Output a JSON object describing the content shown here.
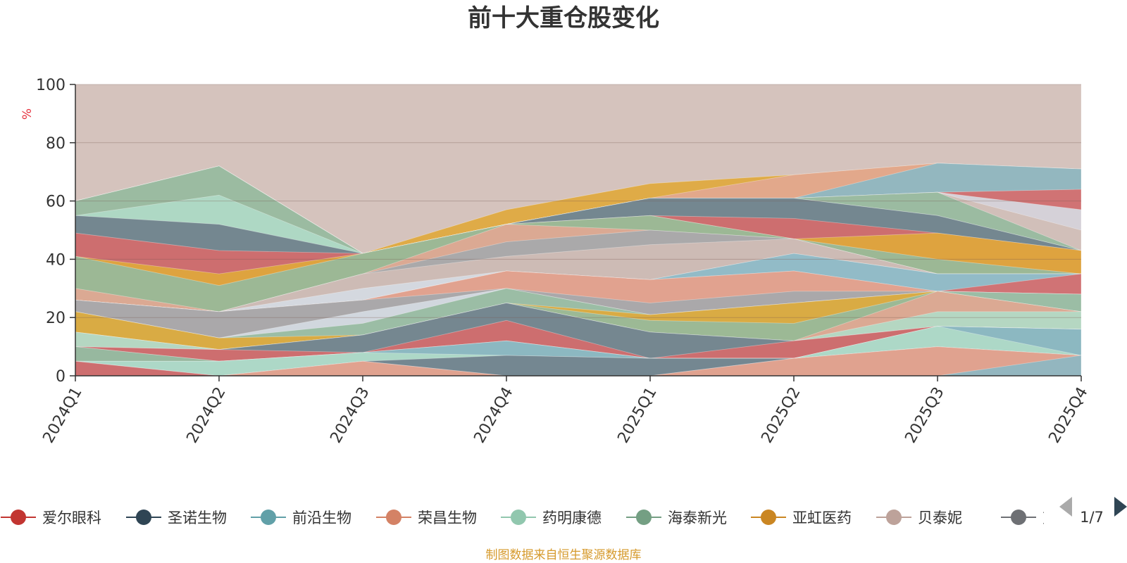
{
  "chart_data": {
    "type": "area",
    "title": "前十大重仓股变化",
    "ylabel": "%",
    "ylim": [
      0,
      100
    ],
    "yticks": [
      0,
      20,
      40,
      60,
      80,
      100
    ],
    "categories": [
      "2024Q1",
      "2024Q2",
      "2024Q3",
      "2024Q4",
      "2025Q1",
      "2025Q2",
      "2025Q3",
      "2025Q4"
    ],
    "layers": [
      {
        "top": [
          100,
          100,
          100,
          100,
          100,
          100,
          100,
          100
        ],
        "color": "#d0bcb6"
      },
      {
        "top": [
          60,
          72,
          42,
          57,
          66,
          69,
          73,
          71
        ],
        "color": "#e0a83a"
      },
      {
        "top": [
          60,
          72,
          42,
          52,
          61,
          69,
          73,
          71
        ],
        "color": "#e2a792"
      },
      {
        "top": [
          60,
          72,
          42,
          52,
          61,
          61,
          73,
          71
        ],
        "color": "#8bb8c4"
      },
      {
        "top": [
          60,
          72,
          42,
          52,
          61,
          61,
          63,
          64
        ],
        "color": "#d76b6b"
      },
      {
        "top": [
          60,
          72,
          42,
          52,
          61,
          61,
          63,
          57
        ],
        "color": "#d5dbe3"
      },
      {
        "top": [
          60,
          72,
          42,
          52,
          61,
          61,
          63,
          50
        ],
        "color": "#d0bcb6"
      },
      {
        "top": [
          60,
          72,
          42,
          52,
          61,
          61,
          63,
          43
        ],
        "color": "#95ba9e"
      },
      {
        "top": [
          55,
          62,
          42,
          52,
          61,
          61,
          55,
          43
        ],
        "color": "#b0dcc8"
      },
      {
        "top": [
          55,
          52,
          42,
          52,
          61,
          61,
          55,
          43
        ],
        "color": "#6e7e8b"
      },
      {
        "top": [
          49,
          43,
          42,
          52,
          55,
          54,
          49,
          43
        ],
        "color": "#d76b6b"
      },
      {
        "top": [
          41,
          35,
          42,
          52,
          55,
          47,
          49,
          43
        ],
        "color": "#e0a83a"
      },
      {
        "top": [
          41,
          31,
          42,
          52,
          55,
          47,
          40,
          35
        ],
        "color": "#95ba9e"
      },
      {
        "top": [
          30,
          22,
          35,
          52,
          50,
          47,
          35,
          35
        ],
        "color": "#e2a792"
      },
      {
        "top": [
          26,
          22,
          35,
          46,
          50,
          47,
          35,
          35
        ],
        "color": "#a4a8ad"
      },
      {
        "top": [
          26,
          22,
          35,
          41,
          45,
          47,
          35,
          35
        ],
        "color": "#d0bcb6"
      },
      {
        "top": [
          26,
          22,
          30,
          36,
          33,
          42,
          35,
          35
        ],
        "color": "#d5dbe3"
      },
      {
        "top": [
          26,
          22,
          26,
          36,
          33,
          42,
          35,
          35
        ],
        "color": "#8bb8c4"
      },
      {
        "top": [
          26,
          22,
          26,
          36,
          33,
          36,
          29,
          35
        ],
        "color": "#d76b6b"
      },
      {
        "top": [
          26,
          22,
          26,
          36,
          33,
          36,
          29,
          28
        ],
        "color": "#e2a792"
      },
      {
        "top": [
          26,
          22,
          26,
          30,
          25,
          29,
          29,
          28
        ],
        "color": "#a4a8ad"
      },
      {
        "top": [
          22,
          13,
          22,
          30,
          21,
          25,
          29,
          28
        ],
        "color": "#d5dbe3"
      },
      {
        "top": [
          22,
          13,
          18,
          30,
          21,
          25,
          29,
          28
        ],
        "color": "#95ba9e"
      },
      {
        "top": [
          22,
          13,
          14,
          25,
          21,
          25,
          29,
          22
        ],
        "color": "#e0a83a"
      },
      {
        "top": [
          15,
          9,
          14,
          25,
          19,
          18,
          29,
          22
        ],
        "color": "#95ba9e"
      },
      {
        "top": [
          15,
          9,
          14,
          25,
          15,
          12,
          29,
          22
        ],
        "color": "#e2a792"
      },
      {
        "top": [
          15,
          9,
          14,
          25,
          15,
          12,
          22,
          22
        ],
        "color": "#b0dcc8"
      },
      {
        "top": [
          10,
          9,
          14,
          25,
          15,
          12,
          17,
          16
        ],
        "color": "#6e7e8b"
      },
      {
        "top": [
          10,
          9,
          8,
          19,
          6,
          12,
          17,
          16
        ],
        "color": "#d76b6b"
      },
      {
        "top": [
          10,
          5,
          8,
          12,
          6,
          6,
          17,
          16
        ],
        "color": "#a4a8ad"
      },
      {
        "top": [
          10,
          5,
          8,
          12,
          6,
          6,
          17,
          16
        ],
        "color": "#95ba9e"
      },
      {
        "top": [
          5,
          5,
          8,
          12,
          6,
          6,
          17,
          16
        ],
        "color": "#8bb8c4"
      },
      {
        "top": [
          5,
          5,
          8,
          7,
          6,
          6,
          17,
          7
        ],
        "color": "#b0dcc8"
      },
      {
        "top": [
          5,
          0,
          5,
          7,
          6,
          6,
          10,
          7
        ],
        "color": "#6e7e8b"
      },
      {
        "top": [
          5,
          0,
          5,
          0,
          0,
          6,
          10,
          7
        ],
        "color": "#d76b6b"
      },
      {
        "top": [
          0,
          0,
          5,
          0,
          0,
          6,
          10,
          7
        ],
        "color": "#e2a792"
      },
      {
        "top": [
          0,
          0,
          0,
          0,
          0,
          0,
          0,
          7
        ],
        "color": "#8bb8c4"
      }
    ],
    "legend": [
      {
        "name": "爱尔眼科",
        "color": "#c23531"
      },
      {
        "name": "圣诺生物",
        "color": "#2f4554"
      },
      {
        "name": "前沿生物",
        "color": "#61a0a8"
      },
      {
        "name": "荣昌生物",
        "color": "#d48265"
      },
      {
        "name": "药明康德",
        "color": "#91c7ae"
      },
      {
        "name": "海泰新光",
        "color": "#749f83"
      },
      {
        "name": "亚虹医药",
        "color": "#ca8622"
      },
      {
        "name": "贝泰妮",
        "color": "#bda29a"
      },
      {
        "name": "艾",
        "color": "#6e7074"
      }
    ],
    "legend_page": "1/7",
    "source": "制图数据来自恒生聚源数据库"
  }
}
